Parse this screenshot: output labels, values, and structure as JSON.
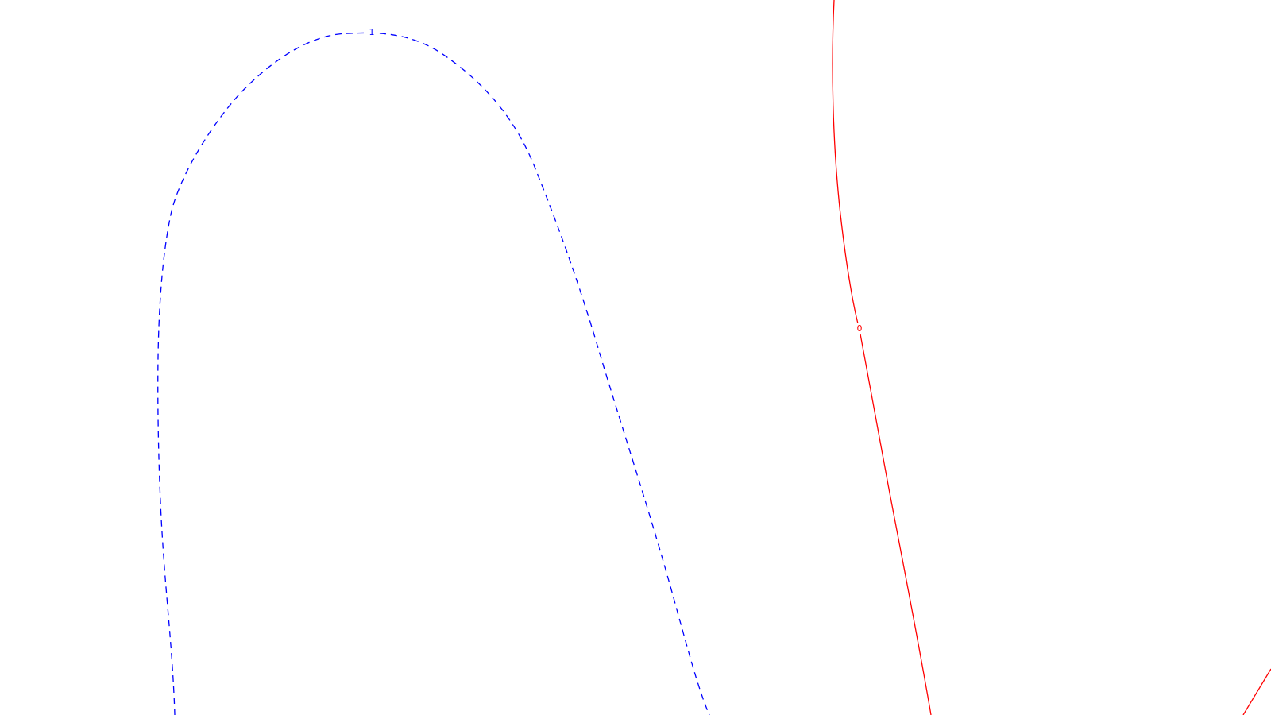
{
  "contours": {
    "level_1": {
      "label": "1",
      "color": "#0000ff",
      "style": "dashed"
    },
    "level_0": {
      "label": "0",
      "color": "#ff0000",
      "style": "solid"
    }
  },
  "background_color": "#ffffff"
}
